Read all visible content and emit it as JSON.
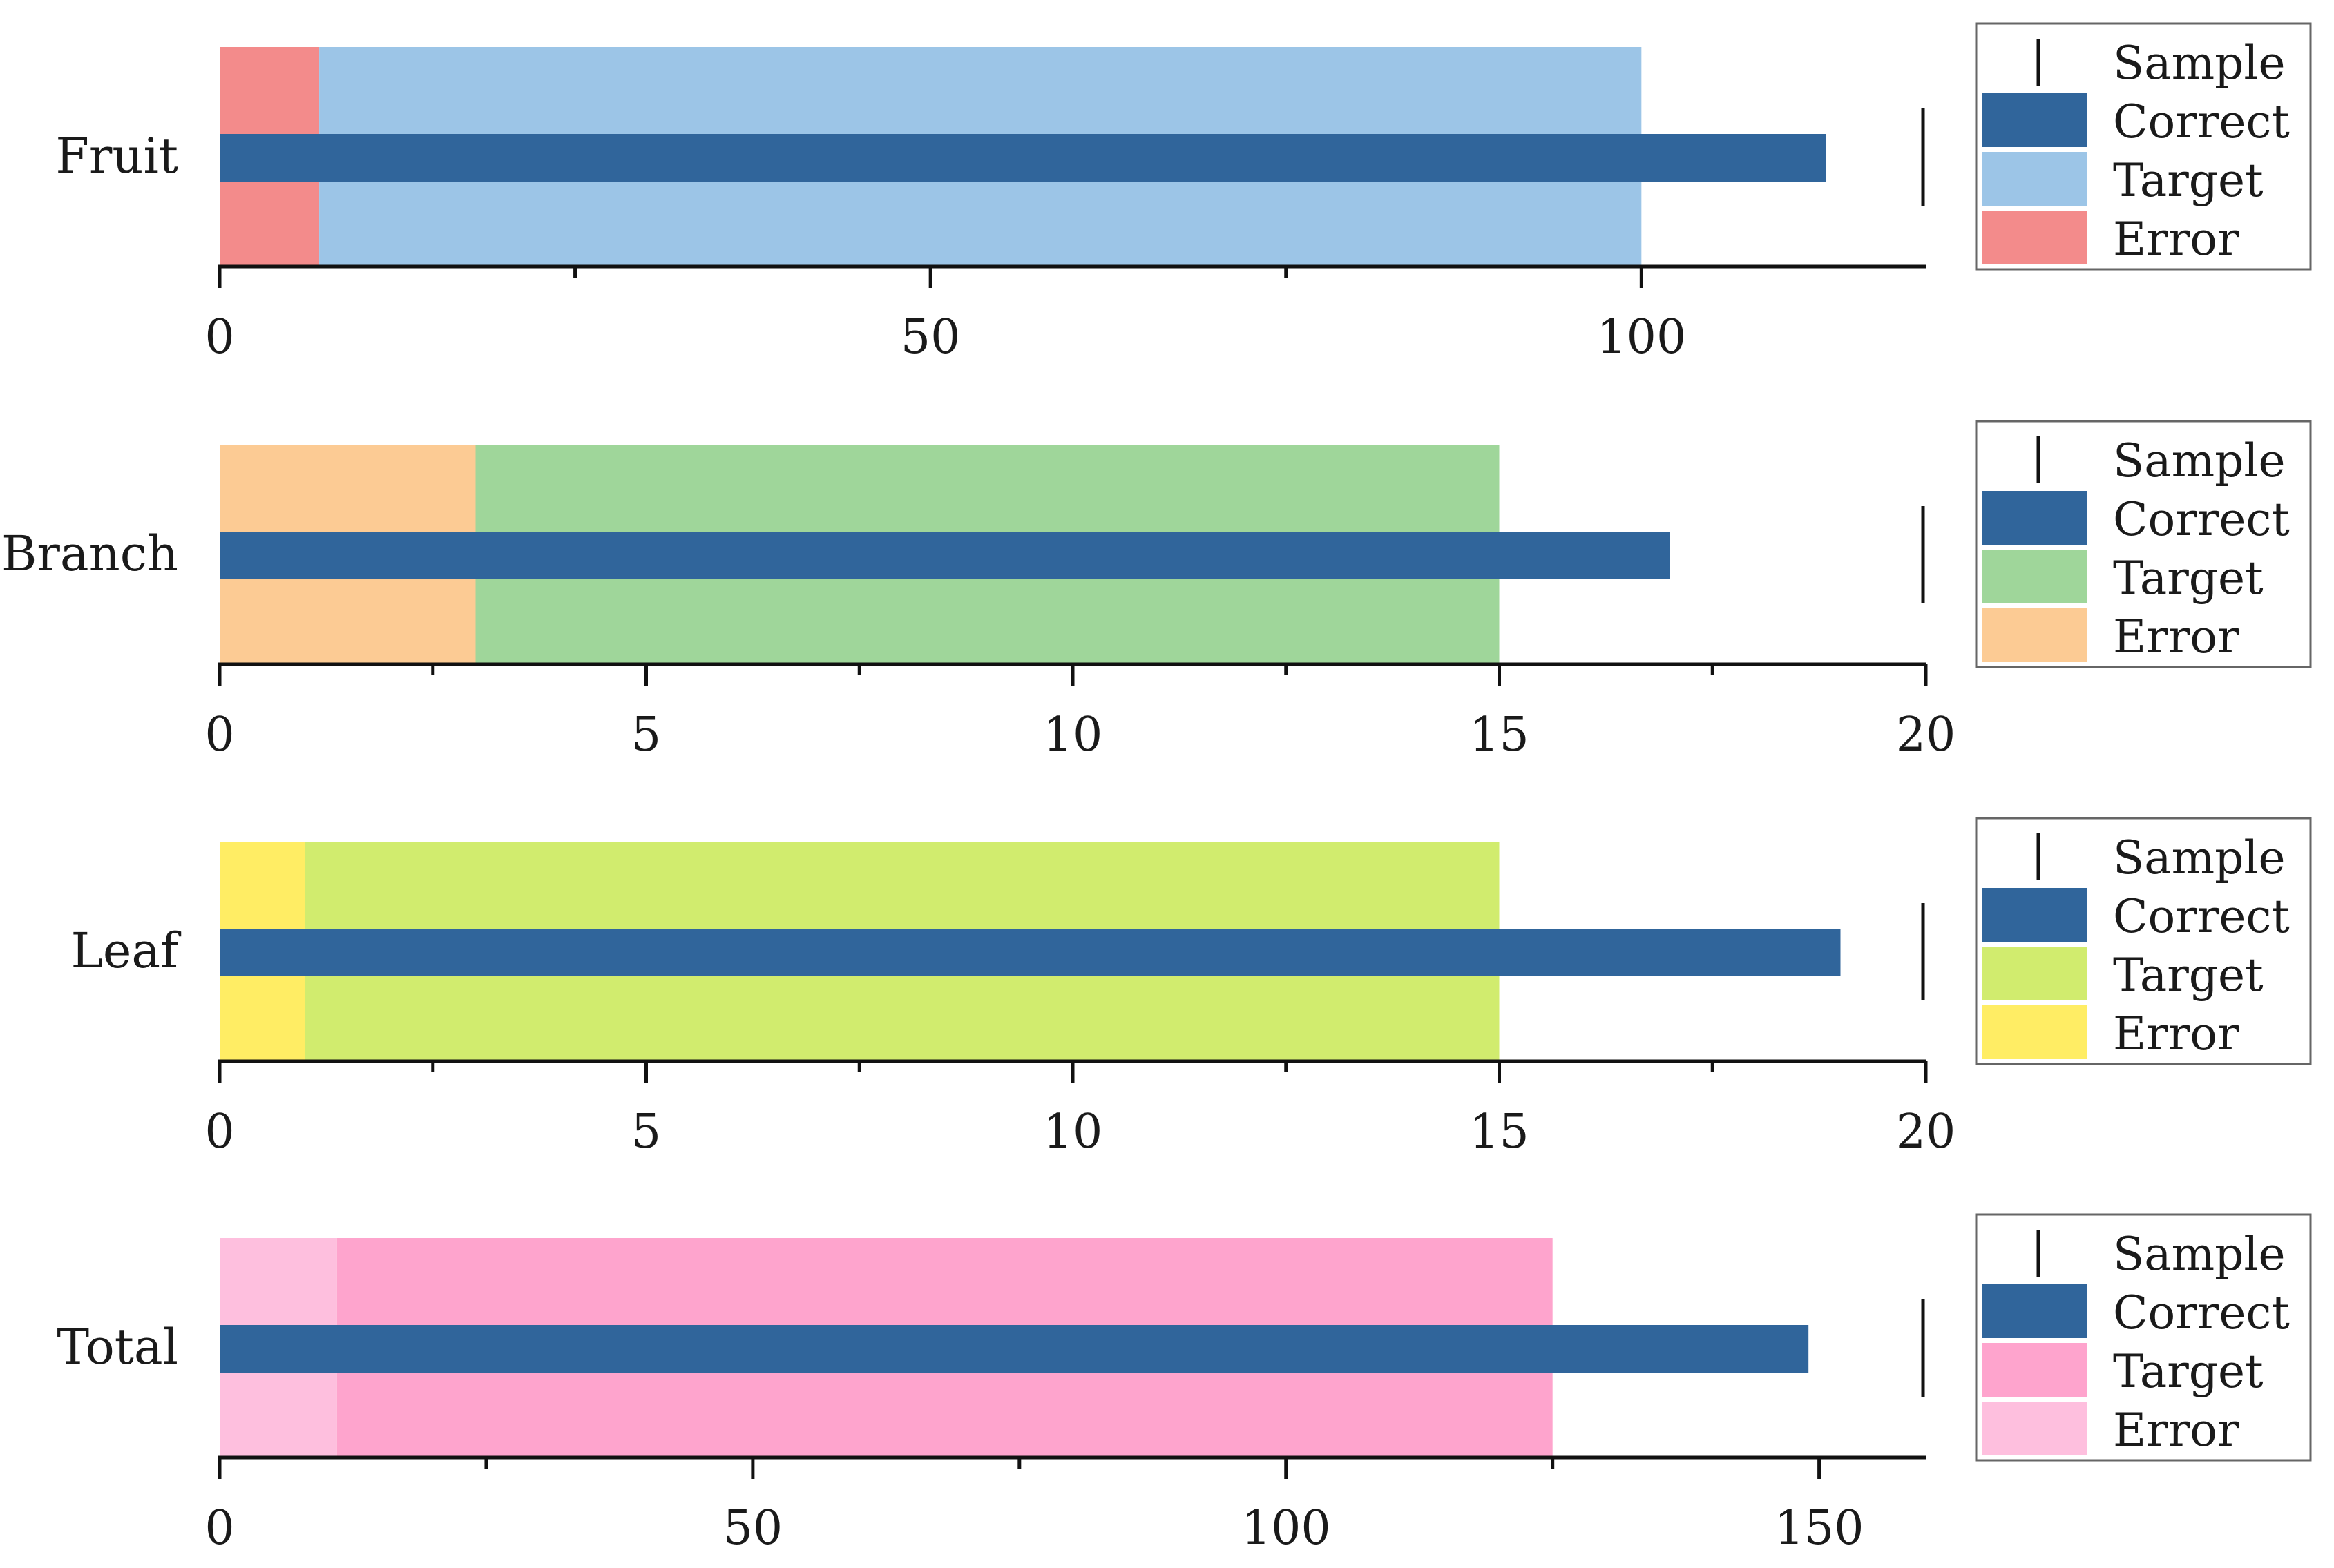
{
  "chart_data": [
    {
      "type": "bar",
      "subtype": "bullet",
      "category": "Fruit",
      "xlim": [
        0,
        120
      ],
      "ticks": [
        0,
        50,
        100
      ],
      "tick_labels": [
        "0",
        "50",
        "100"
      ],
      "error": 7,
      "target": 100,
      "correct": 113,
      "sample": 120,
      "colors": {
        "correct": "#30659b",
        "target": "#9cc5e7",
        "error": "#f38b8b"
      },
      "legend": [
        "Sample",
        "Correct",
        "Target",
        "Error"
      ],
      "legend_position": "right"
    },
    {
      "type": "bar",
      "subtype": "bullet",
      "category": "Branch",
      "xlim": [
        0,
        20
      ],
      "ticks": [
        0,
        5,
        10,
        15,
        20
      ],
      "tick_labels": [
        "0",
        "5",
        "10",
        "15",
        "20"
      ],
      "error": 3,
      "target": 15,
      "correct": 17,
      "sample": 20,
      "colors": {
        "correct": "#30659b",
        "target": "#9fd69a",
        "error": "#fccb94"
      },
      "legend": [
        "Sample",
        "Correct",
        "Target",
        "Error"
      ],
      "legend_position": "right"
    },
    {
      "type": "bar",
      "subtype": "bullet",
      "category": "Leaf",
      "xlim": [
        0,
        20
      ],
      "ticks": [
        0,
        5,
        10,
        15,
        20
      ],
      "tick_labels": [
        "0",
        "5",
        "10",
        "15",
        "20"
      ],
      "error": 1,
      "target": 15,
      "correct": 19,
      "sample": 20,
      "colors": {
        "correct": "#30659b",
        "target": "#d1ec6e",
        "error": "#ffed64"
      },
      "legend": [
        "Sample",
        "Correct",
        "Target",
        "Error"
      ],
      "legend_position": "right"
    },
    {
      "type": "bar",
      "subtype": "bullet",
      "category": "Total",
      "xlim": [
        0,
        160
      ],
      "ticks": [
        0,
        50,
        100,
        150
      ],
      "tick_labels": [
        "0",
        "50",
        "100",
        "150"
      ],
      "error": 11,
      "target": 125,
      "correct": 149,
      "sample": 160,
      "colors": {
        "correct": "#30659b",
        "target": "#fea4cd",
        "error": "#febfde"
      },
      "legend": [
        "Sample",
        "Correct",
        "Target",
        "Error"
      ],
      "legend_position": "right"
    }
  ]
}
